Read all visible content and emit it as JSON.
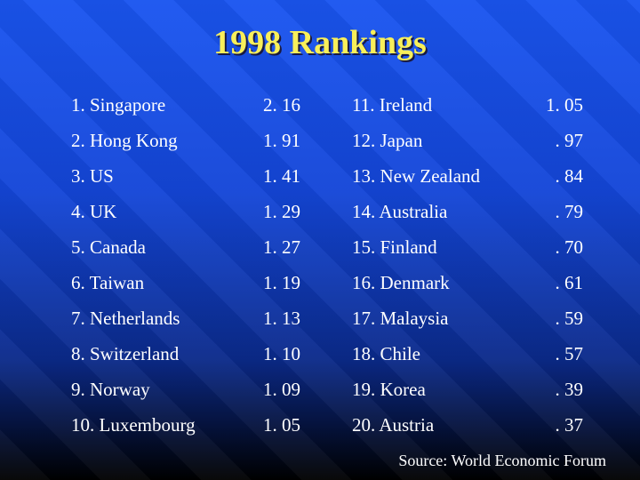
{
  "title": "1998 Rankings",
  "rows": [
    {
      "left_name": "1. Singapore",
      "left_value": "2. 16",
      "right_name": "11. Ireland",
      "right_value": "1. 05"
    },
    {
      "left_name": "2. Hong Kong",
      "left_value": "1. 91",
      "right_name": "12. Japan",
      "right_value": ". 97"
    },
    {
      "left_name": "3. US",
      "left_value": "1. 41",
      "right_name": "13. New Zealand",
      "right_value": ". 84"
    },
    {
      "left_name": "4. UK",
      "left_value": "1. 29",
      "right_name": "14. Australia",
      "right_value": ". 79"
    },
    {
      "left_name": "5. Canada",
      "left_value": "1. 27",
      "right_name": "15. Finland",
      "right_value": ". 70"
    },
    {
      "left_name": "6. Taiwan",
      "left_value": "1. 19",
      "right_name": "16. Denmark",
      "right_value": ". 61"
    },
    {
      "left_name": "7. Netherlands",
      "left_value": "1. 13",
      "right_name": "17. Malaysia",
      "right_value": ". 59"
    },
    {
      "left_name": "8. Switzerland",
      "left_value": "1. 10",
      "right_name": "18. Chile",
      "right_value": ". 57"
    },
    {
      "left_name": "9. Norway",
      "left_value": "1. 09",
      "right_name": "19. Korea",
      "right_value": ". 39"
    },
    {
      "left_name": "10.  Luxembourg",
      "left_value": "1. 05",
      "right_name": "20. Austria",
      "right_value": ". 37"
    }
  ],
  "source": "Source: World Economic Forum",
  "colors": {
    "title": "#f8ef5a",
    "text": "#ffffff",
    "background_top": "#1a55f0",
    "background_bottom": "#000000"
  }
}
